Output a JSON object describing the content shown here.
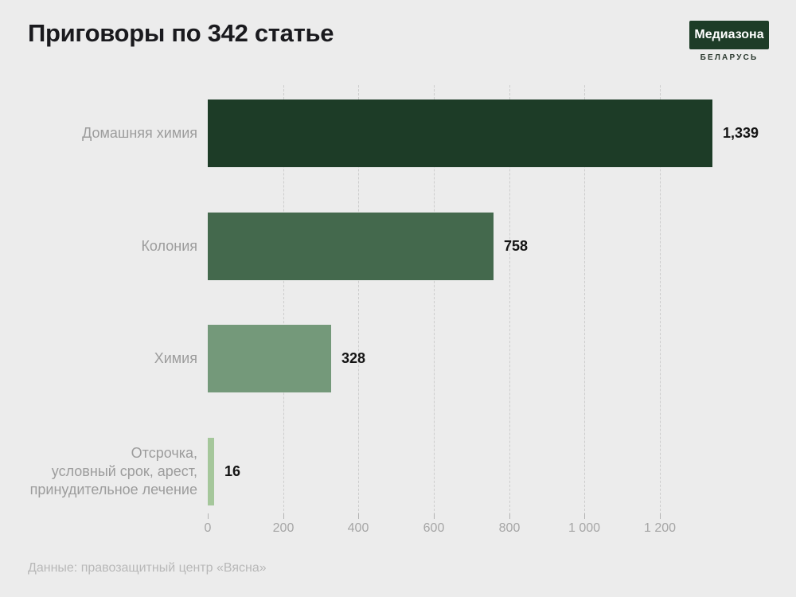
{
  "header": {
    "title": "Приговоры по 342 статье",
    "logo": {
      "text": "Медиазона",
      "subtext": "БЕЛАРУСЬ",
      "bg_color": "#1d3c27",
      "text_color": "#ffffff"
    }
  },
  "chart_data": {
    "type": "bar",
    "orientation": "horizontal",
    "title": "Приговоры по 342 статье",
    "categories": [
      "Домашняя химия",
      "Колония",
      "Химия",
      "Отсрочка, условный срок, арест, принудительное лечение"
    ],
    "category_lines": [
      [
        "Домашняя химия"
      ],
      [
        "Колония"
      ],
      [
        "Химия"
      ],
      [
        "Отсрочка,",
        "условный срок, арест,",
        "принудительное лечение"
      ]
    ],
    "values": [
      1339,
      758,
      328,
      16
    ],
    "value_labels": [
      "1,339",
      "758",
      "328",
      "16"
    ],
    "bar_colors": [
      "#1d3c27",
      "#44694d",
      "#74997a",
      "#a5c79b"
    ],
    "x_ticks": [
      0,
      200,
      400,
      600,
      800,
      1000,
      1200
    ],
    "x_tick_labels": [
      "0",
      "200",
      "400",
      "600",
      "800",
      "1 000",
      "1 200"
    ],
    "xlim": [
      0,
      1350
    ],
    "grid": "vertical-dashed",
    "legend": "none"
  },
  "footer": {
    "source": "Данные: правозащитный центр «Вясна»"
  },
  "colors": {
    "background": "#ececec",
    "title": "#1a1a1e",
    "category_label": "#9c9c9c",
    "value_label": "#141414",
    "tick_label": "#a6a6a6",
    "gridline": "#cdcdcd",
    "footer": "#b8b8b8",
    "badge_bg": "#1d3c27",
    "badge_subtext": "#2c3a30"
  }
}
